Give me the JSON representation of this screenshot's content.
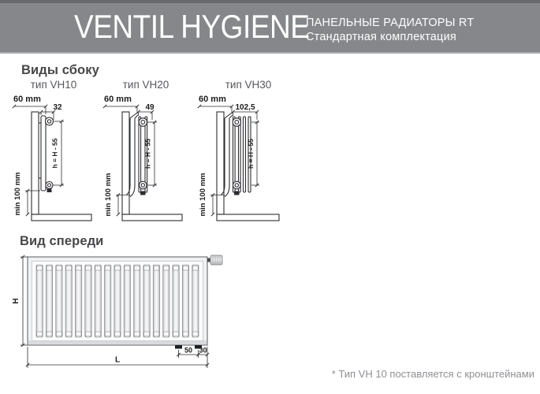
{
  "header": {
    "title": "VENTIL HYGIENE",
    "subtitle_line1": "ПАНЕЛЬНЫЕ РАДИАТОРЫ RT",
    "subtitle_line2": "Стандартная комплектация"
  },
  "side_views": {
    "heading": "Виды сбоку",
    "views": [
      {
        "label": "тип VH10",
        "wall_offset": "60 mm",
        "depth": "32",
        "height_formula": "h = H - 55",
        "floor_clearance": "min 100 mm"
      },
      {
        "label": "тип VH20",
        "wall_offset": "60 mm",
        "depth": "49",
        "height_formula": "h = H - 55",
        "floor_clearance": "min 100 mm"
      },
      {
        "label": "тип VH30",
        "wall_offset": "60 mm",
        "depth": "102,5",
        "height_formula": "h = H - 55",
        "floor_clearance": "min 100 mm"
      }
    ]
  },
  "front_view": {
    "heading": "Вид спереди",
    "height_label": "H",
    "length_label": "L",
    "conn_spacing": "50",
    "conn_edge": "30",
    "rib_count": 17
  },
  "footnote": "* Тип VH 10 поставляется с кронштейнами",
  "colors": {
    "header_bg": "#85878b",
    "header_top_strip": "#67696e",
    "header_text": "#ffffff",
    "drawing_line": "#2c2d30",
    "heading_text": "#48484b",
    "footnote_text": "#8f9094"
  }
}
